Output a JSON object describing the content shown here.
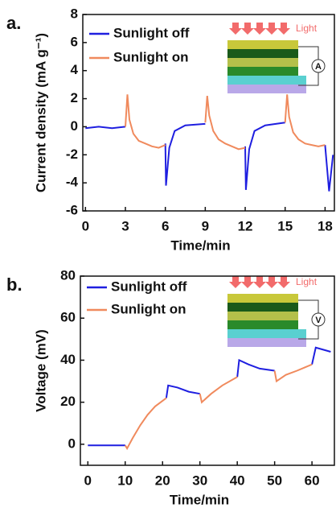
{
  "chart_data": [
    {
      "type": "line",
      "panel_label": "a.",
      "xlabel": "Time/min",
      "ylabel": "Current density (mA g⁻¹)",
      "xlim": [
        -0.2,
        18.7
      ],
      "ylim": [
        -6,
        8
      ],
      "xticks": [
        0,
        3,
        6,
        9,
        12,
        15,
        18
      ],
      "yticks": [
        -6,
        -4,
        -2,
        0,
        2,
        4,
        6,
        8
      ],
      "inset_label": "Light",
      "meter_label": "A",
      "series": [
        {
          "name": "Sunlight off",
          "color": "#1f1fe0",
          "x": [
            0,
            1,
            2,
            3,
            3,
            6,
            6.05,
            6.3,
            6.7,
            7.5,
            9,
            9,
            12,
            12.05,
            12.3,
            12.7,
            13.5,
            15,
            15,
            18,
            18.3,
            18.6
          ],
          "values": [
            -0.1,
            0,
            -0.1,
            0,
            null,
            -1.2,
            -4.2,
            -1.5,
            -0.3,
            0.1,
            0.2,
            null,
            -1.4,
            -4.5,
            -1.6,
            -0.3,
            0.1,
            0.3,
            null,
            -1.3,
            -4.6,
            -2
          ]
        },
        {
          "name": "Sunlight on",
          "color": "#f08a5d",
          "x": [
            3,
            3.15,
            3.3,
            3.6,
            4,
            4.5,
            5,
            5.5,
            6,
            6,
            9,
            9.15,
            9.3,
            9.6,
            10,
            10.5,
            11,
            11.5,
            12,
            12,
            15,
            15.15,
            15.3,
            15.6,
            16,
            16.5,
            17,
            17.5,
            18
          ],
          "values": [
            0,
            2.3,
            0.5,
            -0.5,
            -1,
            -1.2,
            -1.4,
            -1.5,
            -1.3,
            null,
            0.3,
            2.2,
            0.8,
            -0.3,
            -0.9,
            -1.2,
            -1.4,
            -1.6,
            -1.5,
            null,
            0.3,
            2.3,
            0.7,
            -0.4,
            -0.9,
            -1.2,
            -1.3,
            -1.4,
            -1.3
          ]
        }
      ]
    },
    {
      "type": "line",
      "panel_label": "b.",
      "xlabel": "Time/min",
      "ylabel": "Voltage (mV)",
      "xlim": [
        -2,
        66
      ],
      "ylim": [
        -10,
        80
      ],
      "xticks": [
        0,
        10,
        20,
        30,
        40,
        50,
        60
      ],
      "yticks": [
        0,
        20,
        40,
        60,
        80
      ],
      "inset_label": "Light",
      "meter_label": "V",
      "series": [
        {
          "name": "Sunlight off",
          "color": "#1f1fe0",
          "x": [
            0,
            5,
            10,
            10,
            21,
            21.5,
            24,
            27,
            30,
            30,
            40,
            40.5,
            43,
            46,
            50,
            50,
            60,
            61,
            63,
            65
          ],
          "values": [
            -0.5,
            -0.5,
            -0.5,
            null,
            22,
            28,
            27,
            25,
            24,
            null,
            32,
            40,
            38,
            36,
            35,
            null,
            38,
            46,
            45,
            44
          ]
        },
        {
          "name": "Sunlight on",
          "color": "#f08a5d",
          "x": [
            10,
            10.5,
            12,
            14,
            16,
            18,
            21,
            21,
            30,
            30.5,
            33,
            36,
            40,
            40,
            50,
            50.5,
            53,
            56,
            60
          ],
          "values": [
            -0.5,
            -2,
            3,
            9,
            14,
            18,
            22,
            null,
            24,
            20,
            24,
            28,
            32,
            null,
            35,
            30,
            33,
            35,
            38
          ]
        }
      ]
    }
  ]
}
